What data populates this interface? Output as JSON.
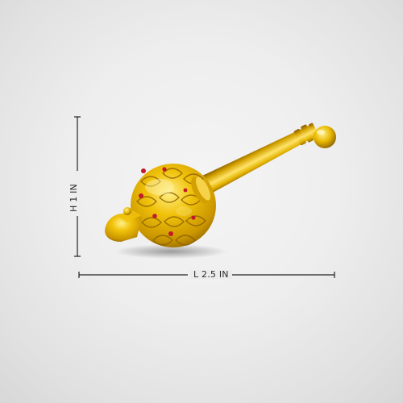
{
  "dimensions": {
    "height_label": "H 1 IN",
    "length_label": "L 2.5 IN"
  },
  "colors": {
    "background": "#ececec",
    "gold_light": "#ffe66a",
    "gold_mid": "#e8b800",
    "gold_dark": "#9a6b00",
    "gem_red": "#c2192b",
    "measure_line": "#222222"
  }
}
